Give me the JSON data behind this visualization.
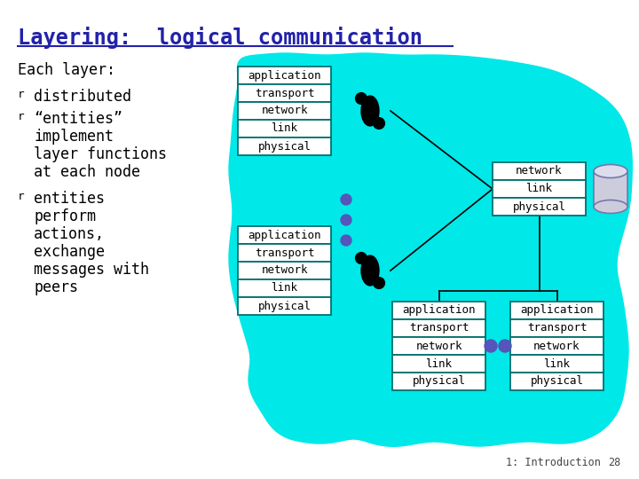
{
  "title": "Layering:  logical communication",
  "bg_color": "#ffffff",
  "cyan_color": "#00e8e8",
  "box_border_color": "#007070",
  "box_fill": "#ffffff",
  "text_color": "#000000",
  "title_color": "#2222aa",
  "layers_full": [
    "application",
    "transport",
    "network",
    "link",
    "physical"
  ],
  "layers_partial": [
    "network",
    "link",
    "physical"
  ],
  "footer_text": "1: Introduction",
  "page_num": "28",
  "dot_color": "#5555bb",
  "cyl_face": "#ccccdd",
  "cyl_top": "#ddddee",
  "cyl_edge": "#7777aa",
  "line_color": "#000000"
}
